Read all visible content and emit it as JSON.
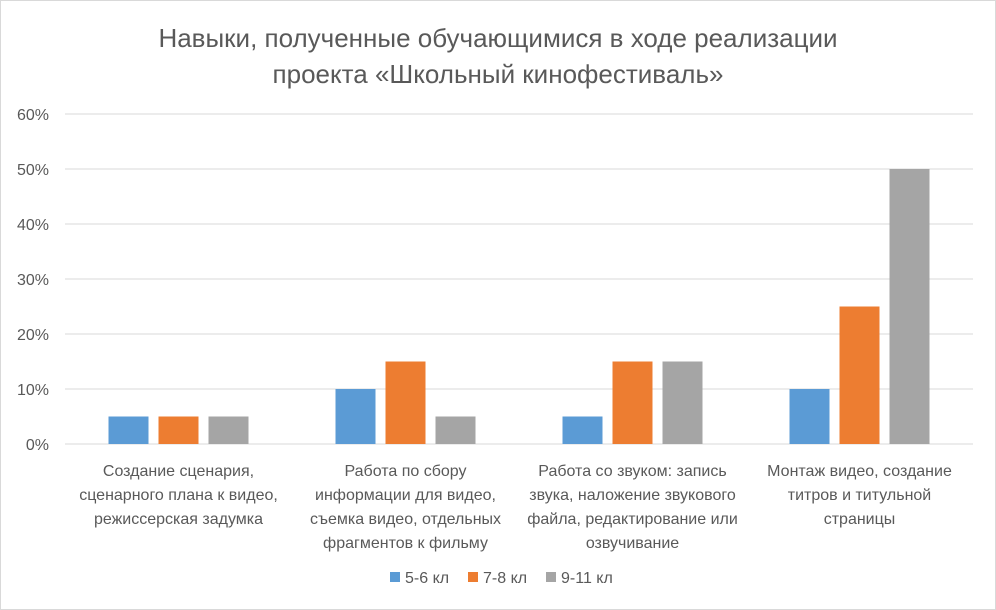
{
  "chart_data": {
    "type": "bar",
    "title_lines": [
      "Навыки, полученные обучающимися в ходе реализации",
      "проекта «Школьный кинофестиваль»"
    ],
    "categories": [
      [
        "Создание сценария,",
        "сценарного плана к видео,",
        "режиссерская задумка"
      ],
      [
        "Работа по сбору",
        "информации для видео,",
        "съемка видео, отдельных",
        "фрагментов к фильму"
      ],
      [
        "Работа со звуком: запись",
        "звука, наложение звукового",
        "файла, редактирование или",
        "озвучивание"
      ],
      [
        "Монтаж видео, создание",
        "титров и титульной",
        "страницы"
      ]
    ],
    "series": [
      {
        "name": "5-6 кл",
        "color": "#5b9bd5",
        "values": [
          0.05,
          0.1,
          0.05,
          0.1
        ]
      },
      {
        "name": "7-8 кл",
        "color": "#ed7d31",
        "values": [
          0.05,
          0.15,
          0.15,
          0.25
        ]
      },
      {
        "name": "9-11 кл",
        "color": "#a5a5a5",
        "values": [
          0.05,
          0.05,
          0.15,
          0.5
        ]
      }
    ],
    "yticks": [
      "0%",
      "10%",
      "20%",
      "30%",
      "40%",
      "50%",
      "60%"
    ],
    "ylim": [
      0,
      0.6
    ],
    "grid": true,
    "legend_position": "bottom",
    "xlabel": "",
    "ylabel": ""
  }
}
